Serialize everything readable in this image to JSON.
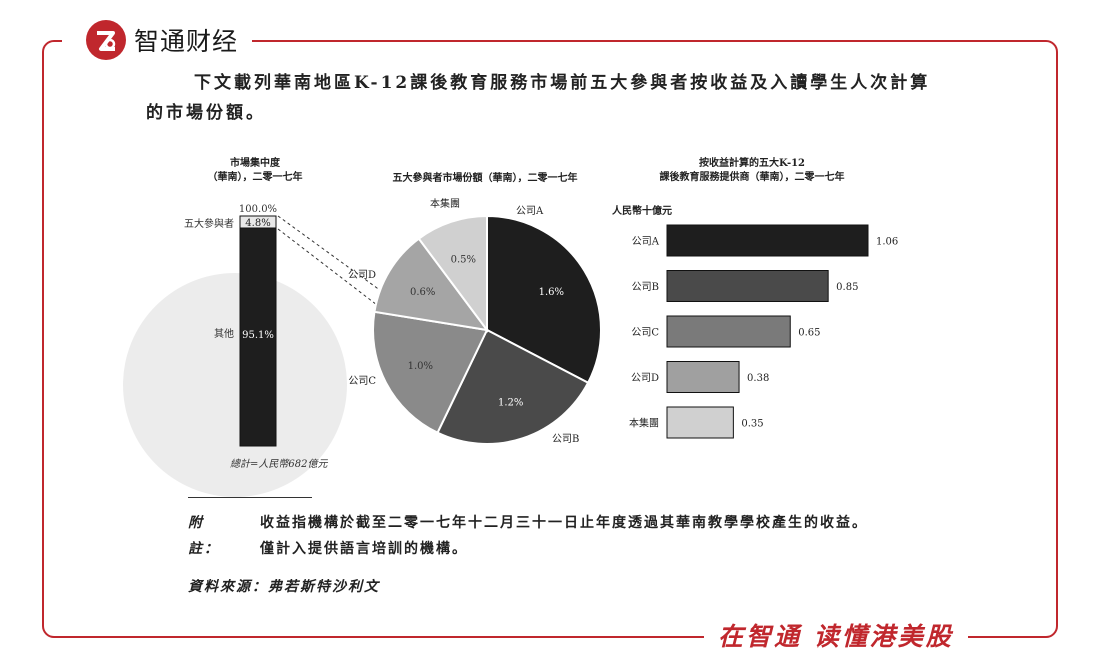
{
  "brand": {
    "name": "智通财经",
    "slogan": "在智通 读懂港美股"
  },
  "heading": "下文載列華南地區K-12課後教育服務市場前五大參與者按收益及入讀學生人次計算的市場份額。",
  "chart_data": [
    {
      "type": "bar",
      "title_lines": [
        "市場集中度",
        "（華南），二零一七年"
      ],
      "orientation": "stacked-vertical",
      "series": [
        {
          "name": "其他",
          "value": 95.1,
          "label": "95.1%",
          "color": "#1e1e1e"
        },
        {
          "name": "五大參與者",
          "value": 4.8,
          "label": "4.8%",
          "color": "#e8e8e8"
        }
      ],
      "top_label": "100.0%",
      "ylim": [
        0,
        100
      ],
      "caption": "總計=人民幣682億元"
    },
    {
      "type": "pie",
      "title": "五大參與者市場份額（華南），二零一七年",
      "slices": [
        {
          "name": "公司A",
          "value": 1.6,
          "label": "1.6%",
          "color": "#1e1e1e"
        },
        {
          "name": "公司B",
          "value": 1.2,
          "label": "1.2%",
          "color": "#4a4a4a"
        },
        {
          "name": "公司C",
          "value": 1.0,
          "label": "1.0%",
          "color": "#8a8a8a"
        },
        {
          "name": "公司D",
          "value": 0.6,
          "label": "0.6%",
          "color": "#a5a5a5"
        },
        {
          "name": "本集團",
          "value": 0.5,
          "label": "0.5%",
          "color": "#d0d0d0"
        }
      ]
    },
    {
      "type": "bar",
      "orientation": "horizontal",
      "title_lines": [
        "按收益計算的五大K-12",
        "課後教育服務提供商（華南），二零一七年"
      ],
      "unit": "人民幣十億元",
      "categories": [
        "公司A",
        "公司B",
        "公司C",
        "公司D",
        "本集團"
      ],
      "values": [
        1.06,
        0.85,
        0.65,
        0.38,
        0.35
      ],
      "value_labels": [
        "1.06",
        "0.85",
        "0.65",
        "0.38",
        "0.35"
      ],
      "colors": [
        "#1e1e1e",
        "#4a4a4a",
        "#7a7a7a",
        "#a0a0a0",
        "#d0d0d0"
      ],
      "xlim": [
        0,
        1.06
      ]
    }
  ],
  "note": {
    "label": "附註：",
    "lines": [
      "收益指機構於截至二零一七年十二月三十一日止年度透過其華南教學學校產生的收益。",
      "僅計入提供語言培訓的機構。"
    ]
  },
  "source": "資料來源：弗若斯特沙利文"
}
